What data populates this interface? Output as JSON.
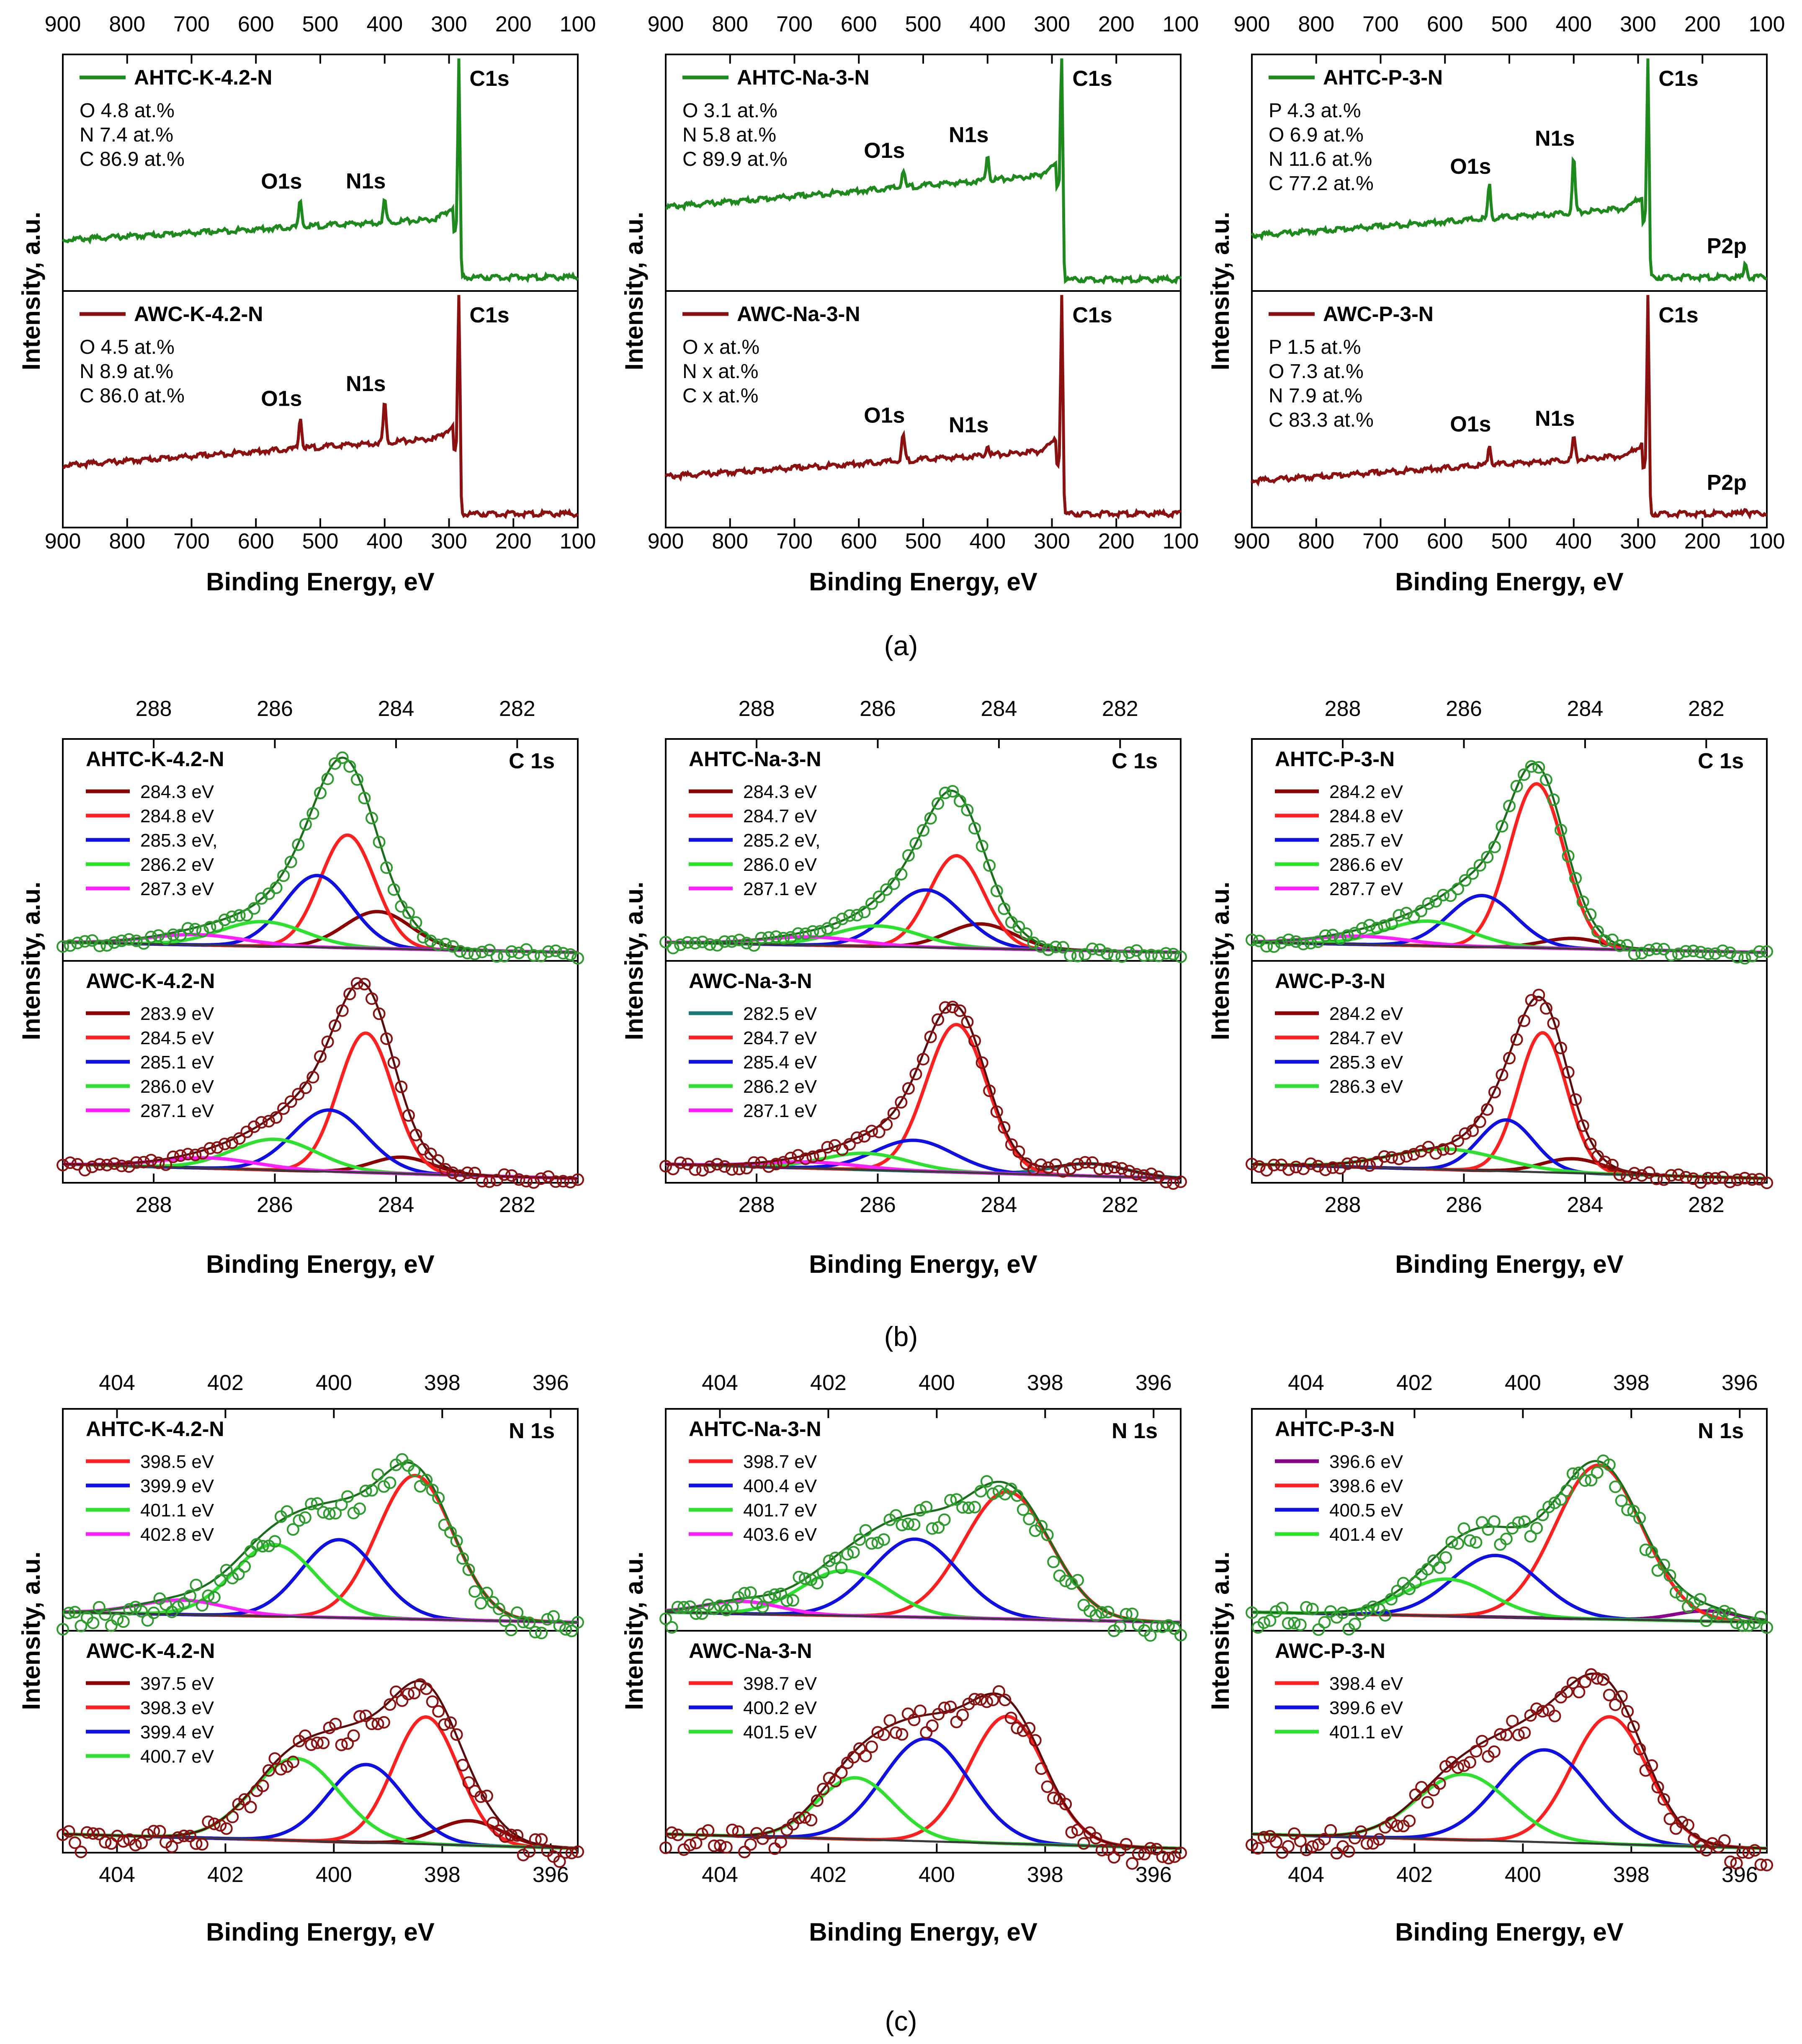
{
  "figure": {
    "x_label": "Binding Energy, eV",
    "y_label": "Intensity, a.u.",
    "captions": [
      "(a)",
      "(b)",
      "(c)"
    ],
    "colors": {
      "axis": "#000000",
      "top_series": "#1e8a1e",
      "bottom_series": "#8b1010",
      "top_marker": "#2e9b2e",
      "bottom_marker": "#8b1010",
      "envelope_top": "#1a6d1a",
      "envelope_bottom": "#5a0a0a",
      "background_line": "#3a3a3a"
    }
  },
  "chart_data": [
    {
      "id": "a1",
      "type": "line",
      "row": "a",
      "col": 0,
      "xlim": [
        900,
        100
      ],
      "xticks": [
        900,
        800,
        700,
        600,
        500,
        400,
        300,
        200,
        100
      ],
      "top": {
        "name": "AHTC-K-4.2-N",
        "composition": [
          "O 4.8 at.%",
          "N 7.4 at.%",
          "C 86.9 at.%"
        ],
        "base_start": 0.2,
        "base_end": 0.3,
        "after_level": 0.03,
        "peaks": [
          {
            "label": "O1s",
            "energy": 531,
            "height": 0.12
          },
          {
            "label": "N1s",
            "energy": 400,
            "height": 0.1
          },
          {
            "label": "C1s",
            "energy": 284.5,
            "height": 0.97
          }
        ]
      },
      "bottom": {
        "name": "AWC-K-4.2-N",
        "composition": [
          "O 4.5 at.%",
          "N 8.9 at.%",
          "C 86.0 at.%"
        ],
        "base_start": 0.25,
        "base_end": 0.38,
        "after_level": 0.03,
        "peaks": [
          {
            "label": "O1s",
            "energy": 531,
            "height": 0.14
          },
          {
            "label": "N1s",
            "energy": 400,
            "height": 0.18
          },
          {
            "label": "C1s",
            "energy": 284.5,
            "height": 0.97
          }
        ]
      }
    },
    {
      "id": "a2",
      "type": "line",
      "row": "a",
      "col": 1,
      "xlim": [
        900,
        100
      ],
      "xticks": [
        900,
        800,
        700,
        600,
        500,
        400,
        300,
        200,
        100
      ],
      "top": {
        "name": "AHTC-Na-3-N",
        "composition": [
          "O 3.1 at.%",
          "N 5.8 at.%",
          "C 89.9 at.%"
        ],
        "base_start": 0.35,
        "base_end": 0.5,
        "after_level": 0.02,
        "peaks": [
          {
            "label": "O1s",
            "energy": 531,
            "height": 0.08
          },
          {
            "label": "N1s",
            "energy": 400,
            "height": 0.12
          },
          {
            "label": "C1s",
            "energy": 284.5,
            "height": 0.97
          }
        ]
      },
      "bottom": {
        "name": "AWC-Na-3-N",
        "composition": [
          "O x at.%",
          "N x at.%",
          "C x at.%"
        ],
        "base_start": 0.2,
        "base_end": 0.32,
        "after_level": 0.03,
        "peaks": [
          {
            "label": "O1s",
            "energy": 531,
            "height": 0.12
          },
          {
            "label": "N1s",
            "energy": 400,
            "height": 0.05
          },
          {
            "label": "C1s",
            "energy": 284.5,
            "height": 0.97
          }
        ]
      }
    },
    {
      "id": "a3",
      "type": "line",
      "row": "a",
      "col": 2,
      "xlim": [
        900,
        100
      ],
      "xticks": [
        900,
        800,
        700,
        600,
        500,
        400,
        300,
        200,
        100
      ],
      "top": {
        "name": "AHTC-P-3-N",
        "composition": [
          "P 4.3 at.%",
          "O 6.9 at.%",
          "N 11.6 at.%",
          "C 77.2 at.%"
        ],
        "base_start": 0.22,
        "base_end": 0.35,
        "after_level": 0.03,
        "peaks": [
          {
            "label": "O1s",
            "energy": 531,
            "height": 0.15
          },
          {
            "label": "N1s",
            "energy": 400,
            "height": 0.25
          },
          {
            "label": "C1s",
            "energy": 284.5,
            "height": 0.97
          },
          {
            "label": "P2p",
            "energy": 133,
            "height": 0.06
          }
        ]
      },
      "bottom": {
        "name": "AWC-P-3-N",
        "composition": [
          "P 1.5 at.%",
          "O 7.3 at.%",
          "N 7.9 at.%",
          "C 83.3 at.%"
        ],
        "base_start": 0.18,
        "base_end": 0.3,
        "after_level": 0.03,
        "peaks": [
          {
            "label": "O1s",
            "energy": 531,
            "height": 0.1
          },
          {
            "label": "N1s",
            "energy": 400,
            "height": 0.1
          },
          {
            "label": "C1s",
            "energy": 284.5,
            "height": 0.97
          },
          {
            "label": "P2p",
            "energy": 133,
            "height": 0.03
          }
        ]
      }
    },
    {
      "id": "b1",
      "type": "scatter",
      "row": "b",
      "col": 0,
      "region": "C 1s",
      "xlim": [
        289.5,
        281
      ],
      "xticks": [
        288,
        286,
        284,
        282
      ],
      "top": {
        "name": "AHTC-K-4.2-N",
        "peak_max": 0.9,
        "components": [
          {
            "label": "284.3 eV",
            "center": 284.3,
            "height": 0.18,
            "width": 0.55,
            "color": "#8b0000"
          },
          {
            "label": "284.8 eV",
            "center": 284.8,
            "height": 0.55,
            "width": 0.45,
            "color": "#ff2020"
          },
          {
            "label": "285.3 eV,",
            "center": 285.3,
            "height": 0.35,
            "width": 0.55,
            "color": "#1010e0"
          },
          {
            "label": "286.2 eV",
            "center": 286.2,
            "height": 0.12,
            "width": 0.7,
            "color": "#30e030"
          },
          {
            "label": "287.3 eV",
            "center": 287.3,
            "height": 0.05,
            "width": 0.8,
            "color": "#ff20ff"
          }
        ]
      },
      "bottom": {
        "name": "AWC-K-4.2-N",
        "peak_max": 0.9,
        "components": [
          {
            "label": "283.9 eV",
            "center": 283.9,
            "height": 0.08,
            "width": 0.5,
            "color": "#8b0000"
          },
          {
            "label": "284.5 eV",
            "center": 284.5,
            "height": 0.68,
            "width": 0.45,
            "color": "#ff2020"
          },
          {
            "label": "285.1 eV",
            "center": 285.1,
            "height": 0.3,
            "width": 0.6,
            "color": "#1010e0"
          },
          {
            "label": "286.0 eV",
            "center": 286.0,
            "height": 0.15,
            "width": 0.7,
            "color": "#30e030"
          },
          {
            "label": "287.1 eV",
            "center": 287.1,
            "height": 0.05,
            "width": 0.8,
            "color": "#ff20ff"
          }
        ]
      }
    },
    {
      "id": "b2",
      "type": "scatter",
      "row": "b",
      "col": 1,
      "region": "C 1s",
      "xlim": [
        289.5,
        281
      ],
      "xticks": [
        288,
        286,
        284,
        282
      ],
      "top": {
        "name": "AHTC-Na-3-N",
        "peak_max": 0.8,
        "components": [
          {
            "label": "284.3 eV",
            "center": 284.3,
            "height": 0.12,
            "width": 0.55,
            "color": "#8b0000"
          },
          {
            "label": "284.7 eV",
            "center": 284.7,
            "height": 0.45,
            "width": 0.45,
            "color": "#ff2020"
          },
          {
            "label": "285.2 eV,",
            "center": 285.2,
            "height": 0.28,
            "width": 0.6,
            "color": "#1010e0"
          },
          {
            "label": "286.0 eV",
            "center": 286.0,
            "height": 0.1,
            "width": 0.7,
            "color": "#30e030"
          },
          {
            "label": "287.1 eV",
            "center": 287.1,
            "height": 0.04,
            "width": 0.8,
            "color": "#ff20ff"
          }
        ]
      },
      "bottom": {
        "name": "AWC-Na-3-N",
        "peak_max": 0.88,
        "components": [
          {
            "label": "282.5 eV",
            "center": 282.5,
            "height": 0.06,
            "width": 0.6,
            "color": "#1a7a7a"
          },
          {
            "label": "284.7 eV",
            "center": 284.7,
            "height": 0.72,
            "width": 0.5,
            "color": "#ff2020"
          },
          {
            "label": "285.4 eV",
            "center": 285.4,
            "height": 0.15,
            "width": 0.65,
            "color": "#1010e0"
          },
          {
            "label": "286.2 eV",
            "center": 286.2,
            "height": 0.08,
            "width": 0.7,
            "color": "#30e030"
          },
          {
            "label": "287.1 eV",
            "center": 287.1,
            "height": 0.03,
            "width": 0.8,
            "color": "#ff20ff"
          }
        ]
      }
    },
    {
      "id": "b3",
      "type": "scatter",
      "row": "b",
      "col": 2,
      "region": "C 1s",
      "xlim": [
        289.5,
        281
      ],
      "xticks": [
        288,
        286,
        284,
        282
      ],
      "top": {
        "name": "AHTC-P-3-N",
        "peak_max": 0.93,
        "components": [
          {
            "label": "284.2 eV",
            "center": 284.2,
            "height": 0.05,
            "width": 0.5,
            "color": "#8b0000"
          },
          {
            "label": "284.8 eV",
            "center": 284.8,
            "height": 0.8,
            "width": 0.45,
            "color": "#ff2020"
          },
          {
            "label": "285.7 eV",
            "center": 285.7,
            "height": 0.25,
            "width": 0.55,
            "color": "#1010e0"
          },
          {
            "label": "286.6 eV",
            "center": 286.6,
            "height": 0.12,
            "width": 0.7,
            "color": "#30e030"
          },
          {
            "label": "287.7 eV",
            "center": 287.7,
            "height": 0.04,
            "width": 0.8,
            "color": "#ff20ff"
          }
        ]
      },
      "bottom": {
        "name": "AWC-P-3-N",
        "peak_max": 0.88,
        "components": [
          {
            "label": "284.2 eV",
            "center": 284.2,
            "height": 0.07,
            "width": 0.5,
            "color": "#8b0000"
          },
          {
            "label": "284.7 eV",
            "center": 284.7,
            "height": 0.68,
            "width": 0.4,
            "color": "#ff2020"
          },
          {
            "label": "285.3 eV",
            "center": 285.3,
            "height": 0.25,
            "width": 0.45,
            "color": "#1010e0"
          },
          {
            "label": "286.3 eV",
            "center": 286.3,
            "height": 0.1,
            "width": 0.9,
            "color": "#30e030"
          }
        ]
      }
    },
    {
      "id": "c1",
      "type": "scatter",
      "row": "c",
      "col": 0,
      "region": "N 1s",
      "xlim": [
        405,
        395.5
      ],
      "xticks": [
        404,
        402,
        400,
        398,
        396
      ],
      "top": {
        "name": "AHTC-K-4.2-N",
        "peak_max": 0.85,
        "components": [
          {
            "label": "398.5 eV",
            "center": 398.5,
            "height": 0.7,
            "width": 0.7,
            "color": "#ff2020"
          },
          {
            "label": "399.9 eV",
            "center": 399.9,
            "height": 0.38,
            "width": 0.7,
            "color": "#1010e0"
          },
          {
            "label": "401.1 eV",
            "center": 401.1,
            "height": 0.35,
            "width": 0.75,
            "color": "#30e030"
          },
          {
            "label": "402.8 eV",
            "center": 402.8,
            "height": 0.07,
            "width": 0.8,
            "color": "#ff20ff"
          }
        ]
      },
      "bottom": {
        "name": "AWC-K-4.2-N",
        "peak_max": 0.85,
        "components": [
          {
            "label": "397.5 eV",
            "center": 397.5,
            "height": 0.12,
            "width": 0.6,
            "color": "#8b0000"
          },
          {
            "label": "398.3 eV",
            "center": 398.3,
            "height": 0.62,
            "width": 0.6,
            "color": "#ff2020"
          },
          {
            "label": "399.4 eV",
            "center": 399.4,
            "height": 0.38,
            "width": 0.7,
            "color": "#1010e0"
          },
          {
            "label": "400.7 eV",
            "center": 400.7,
            "height": 0.4,
            "width": 0.8,
            "color": "#30e030"
          }
        ]
      }
    },
    {
      "id": "c2",
      "type": "scatter",
      "row": "c",
      "col": 1,
      "region": "N 1s",
      "xlim": [
        405,
        395.5
      ],
      "xticks": [
        404,
        402,
        400,
        398,
        396
      ],
      "top": {
        "name": "AHTC-Na-3-N",
        "peak_max": 0.8,
        "components": [
          {
            "label": "398.7 eV",
            "center": 398.7,
            "height": 0.62,
            "width": 0.8,
            "color": "#ff2020"
          },
          {
            "label": "400.4 eV",
            "center": 400.4,
            "height": 0.38,
            "width": 0.8,
            "color": "#1010e0"
          },
          {
            "label": "401.7 eV",
            "center": 401.7,
            "height": 0.22,
            "width": 0.8,
            "color": "#30e030"
          },
          {
            "label": "403.6 eV",
            "center": 403.6,
            "height": 0.06,
            "width": 0.7,
            "color": "#ff20ff"
          }
        ]
      },
      "bottom": {
        "name": "AWC-Na-3-N",
        "peak_max": 0.8,
        "components": [
          {
            "label": "398.7 eV",
            "center": 398.7,
            "height": 0.62,
            "width": 0.7,
            "color": "#ff2020"
          },
          {
            "label": "400.2 eV",
            "center": 400.2,
            "height": 0.5,
            "width": 0.8,
            "color": "#1010e0"
          },
          {
            "label": "401.5 eV",
            "center": 401.5,
            "height": 0.3,
            "width": 0.7,
            "color": "#30e030"
          }
        ]
      }
    },
    {
      "id": "c3",
      "type": "scatter",
      "row": "c",
      "col": 2,
      "region": "N 1s",
      "xlim": [
        405,
        395.5
      ],
      "xticks": [
        404,
        402,
        400,
        398,
        396
      ],
      "top": {
        "name": "AHTC-P-3-N",
        "peak_max": 0.9,
        "components": [
          {
            "label": "396.6 eV",
            "center": 396.6,
            "height": 0.05,
            "width": 0.6,
            "color": "#8b008b"
          },
          {
            "label": "398.6 eV",
            "center": 398.6,
            "height": 0.75,
            "width": 0.8,
            "color": "#ff2020"
          },
          {
            "label": "400.5 eV",
            "center": 400.5,
            "height": 0.3,
            "width": 0.8,
            "color": "#1010e0"
          },
          {
            "label": "401.4 eV",
            "center": 401.4,
            "height": 0.18,
            "width": 0.8,
            "color": "#30e030"
          }
        ]
      },
      "bottom": {
        "name": "AWC-P-3-N",
        "peak_max": 0.85,
        "components": [
          {
            "label": "398.4 eV",
            "center": 398.4,
            "height": 0.62,
            "width": 0.7,
            "color": "#ff2020"
          },
          {
            "label": "399.6 eV",
            "center": 399.6,
            "height": 0.45,
            "width": 0.85,
            "color": "#1010e0"
          },
          {
            "label": "401.1 eV",
            "center": 401.1,
            "height": 0.32,
            "width": 0.85,
            "color": "#30e030"
          }
        ]
      }
    }
  ]
}
